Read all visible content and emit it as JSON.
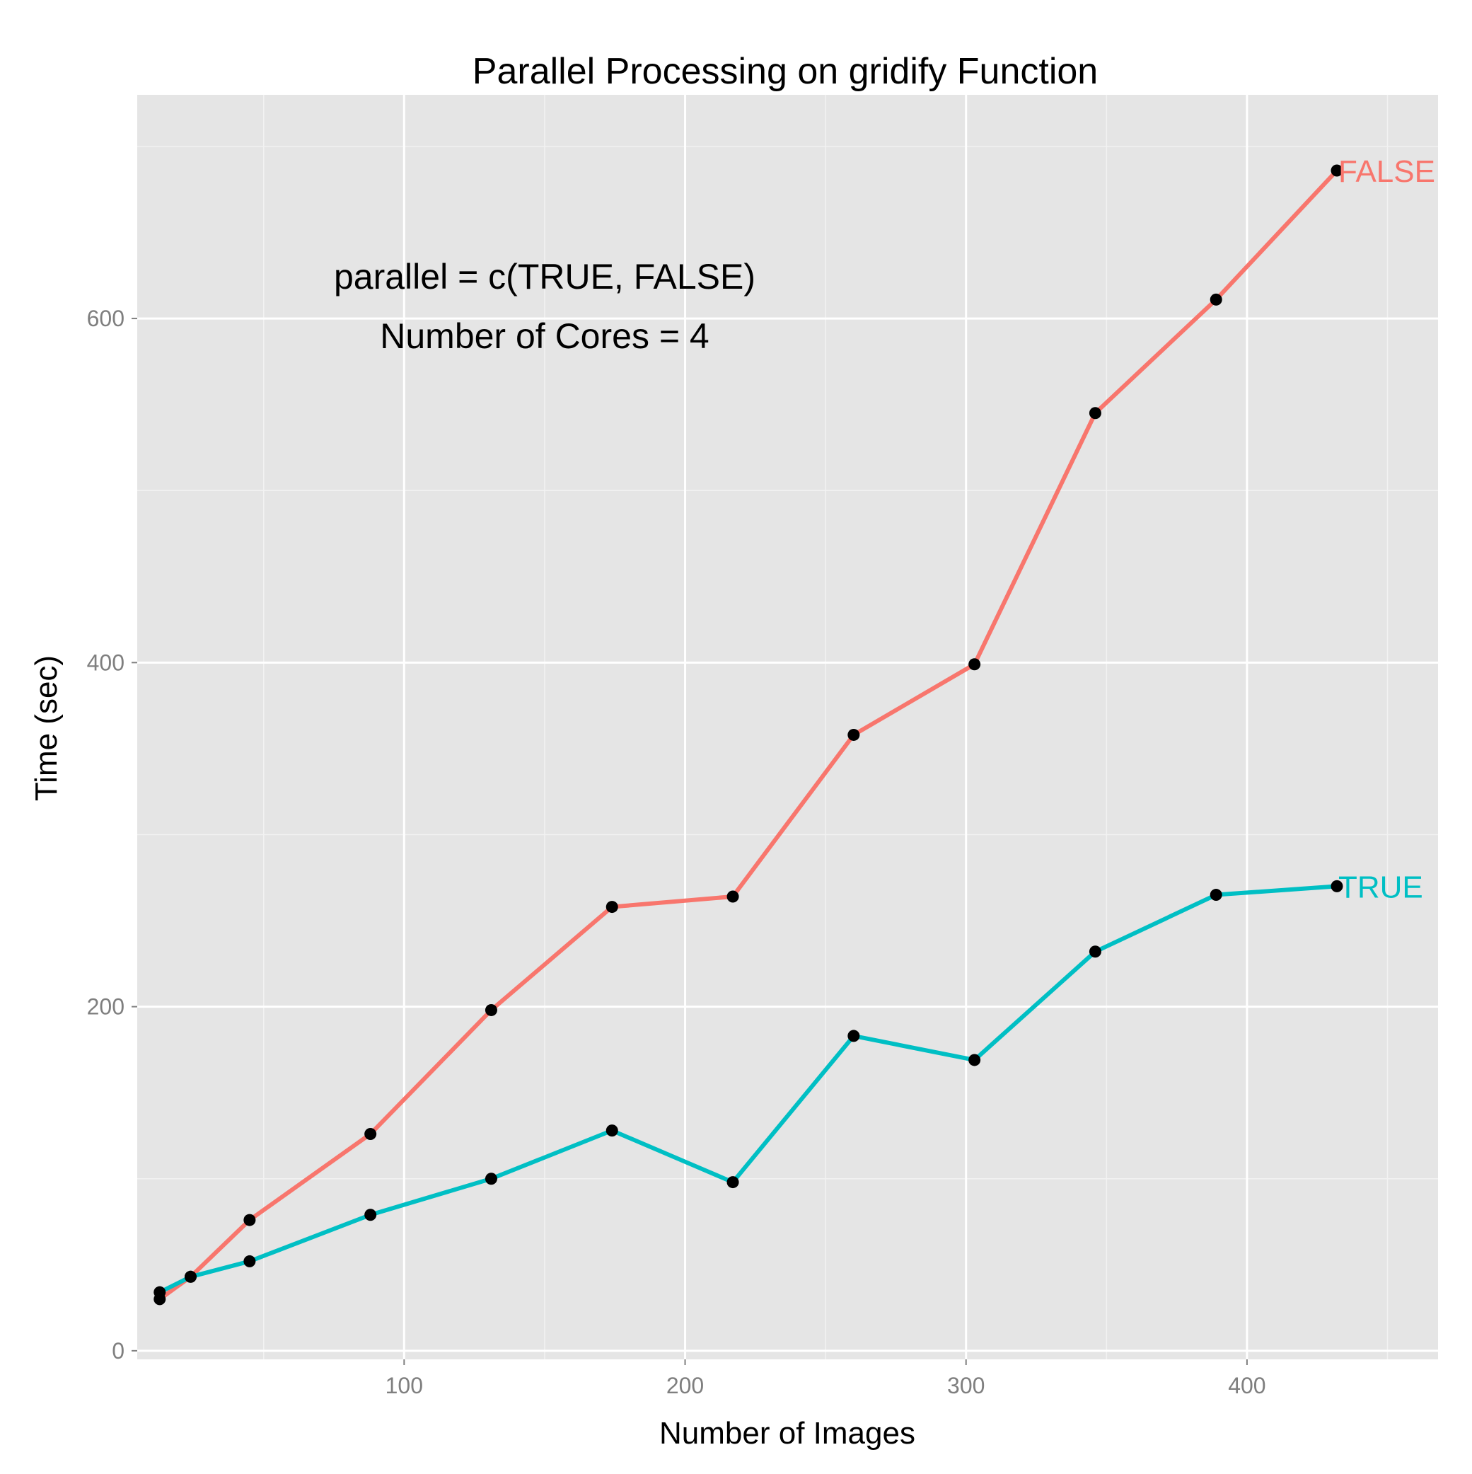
{
  "chart_data": {
    "type": "line",
    "title": "Parallel Processing on gridify Function",
    "xlabel": "Number of Images",
    "ylabel": "Time (sec)",
    "xlim": [
      5,
      468
    ],
    "ylim": [
      -5,
      730
    ],
    "x_ticks": [
      100,
      200,
      300,
      400
    ],
    "y_ticks": [
      0,
      200,
      400,
      600
    ],
    "x_minor_ticks": [
      50,
      150,
      250,
      350,
      450
    ],
    "y_minor_ticks": [
      100,
      300,
      500,
      700
    ],
    "grid": true,
    "legend": "none",
    "annotations": [
      "parallel = c(TRUE, FALSE)",
      "Number of Cores = 4"
    ],
    "series": [
      {
        "name": "FALSE",
        "color": "#F8766D",
        "x": [
          13,
          24,
          45,
          88,
          131,
          174,
          217,
          260,
          303,
          346,
          389,
          432
        ],
        "y": [
          30,
          43,
          76,
          126,
          198,
          258,
          264,
          358,
          399,
          545,
          611,
          686
        ]
      },
      {
        "name": "TRUE",
        "color": "#00BFC4",
        "x": [
          13,
          24,
          45,
          88,
          131,
          174,
          217,
          260,
          303,
          346,
          389,
          432
        ],
        "y": [
          34,
          43,
          52,
          79,
          100,
          128,
          98,
          183,
          169,
          232,
          265,
          270
        ]
      }
    ],
    "point_color": "#000000"
  }
}
